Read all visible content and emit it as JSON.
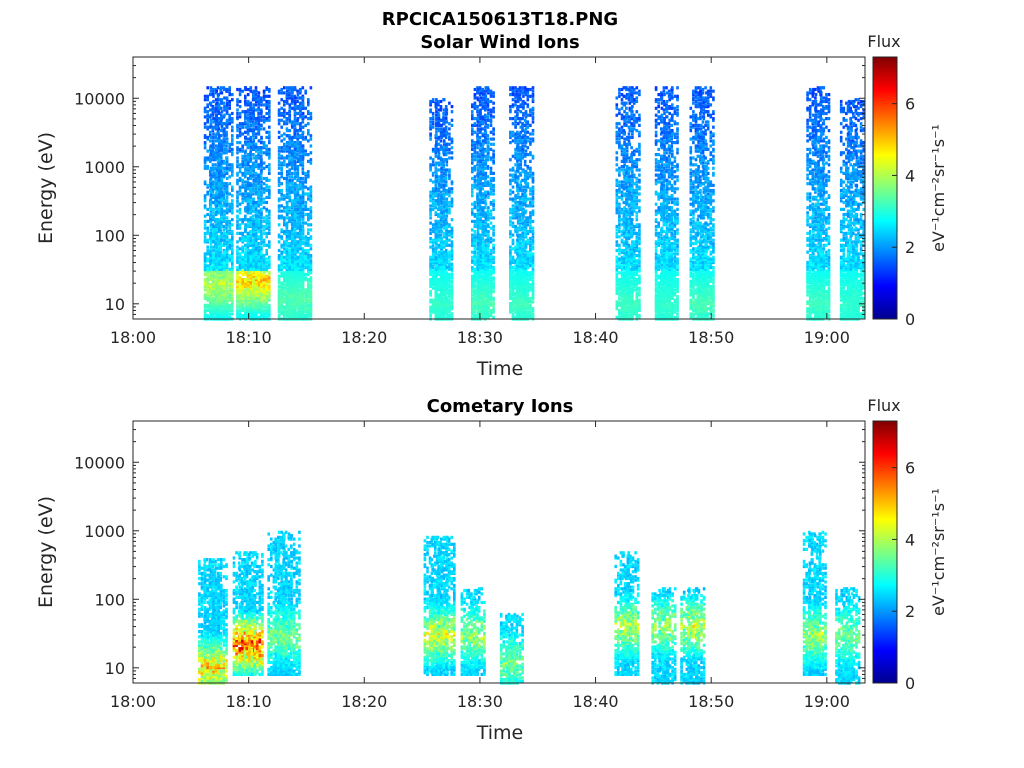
{
  "figure": {
    "title": "RPCICA150613T18.PNG"
  },
  "chart_data": [
    {
      "type": "heatmap",
      "title": "Solar Wind Ions",
      "xlabel": "Time",
      "ylabel": "Energy (eV)",
      "x_ticks": [
        "18:00",
        "18:10",
        "18:20",
        "18:30",
        "18:40",
        "18:50",
        "19:00"
      ],
      "x_tick_minutes": [
        0,
        10,
        20,
        30,
        40,
        50,
        60
      ],
      "xlim_minutes": [
        0,
        63.3
      ],
      "y_scale": "log",
      "y_ticks": [
        "10",
        "100",
        "1000",
        "10000"
      ],
      "y_tick_values": [
        10,
        100,
        1000,
        10000
      ],
      "ylim": [
        6,
        40000
      ],
      "colorbar": {
        "label": "eV⁻¹cm⁻²sr⁻¹s⁻¹",
        "title": "Flux",
        "ticks": [
          "0",
          "2",
          "4",
          "6"
        ],
        "range": [
          0,
          7.3
        ],
        "colormap": "jet"
      },
      "series": [
        {
          "time_minutes": [
            6.8,
            7.3,
            7.8
          ],
          "energy_range_eV": [
            6,
            15000
          ],
          "peak_flux": 4.5,
          "peak_energy_eV": 20
        },
        {
          "time_minutes": [
            9.6,
            10.3,
            11.0
          ],
          "energy_range_eV": [
            6,
            15000
          ],
          "peak_flux": 5.5,
          "peak_energy_eV": 22
        },
        {
          "time_minutes": [
            13.2,
            13.9,
            14.6
          ],
          "energy_range_eV": [
            6,
            15000
          ],
          "peak_flux": 3.5,
          "peak_energy_eV": 12
        },
        {
          "time_minutes": [
            26.3,
            26.8
          ],
          "energy_range_eV": [
            6,
            10000
          ],
          "peak_flux": 3.2,
          "peak_energy_eV": 10
        },
        {
          "time_minutes": [
            29.9,
            30.4
          ],
          "energy_range_eV": [
            6,
            15000
          ],
          "peak_flux": 3.4,
          "peak_energy_eV": 10
        },
        {
          "time_minutes": [
            33.2,
            33.8
          ],
          "energy_range_eV": [
            6,
            15000
          ],
          "peak_flux": 3.3,
          "peak_energy_eV": 10
        },
        {
          "time_minutes": [
            42.4,
            43.0
          ],
          "energy_range_eV": [
            6,
            15000
          ],
          "peak_flux": 3.3,
          "peak_energy_eV": 10
        },
        {
          "time_minutes": [
            45.8,
            46.3
          ],
          "energy_range_eV": [
            6,
            15000
          ],
          "peak_flux": 3.2,
          "peak_energy_eV": 10
        },
        {
          "time_minutes": [
            48.8,
            49.4
          ],
          "energy_range_eV": [
            6,
            15000
          ],
          "peak_flux": 3.4,
          "peak_energy_eV": 10
        },
        {
          "time_minutes": [
            58.9,
            59.4
          ],
          "energy_range_eV": [
            6,
            15000
          ],
          "peak_flux": 3.3,
          "peak_energy_eV": 10
        },
        {
          "time_minutes": [
            61.8,
            62.4
          ],
          "energy_range_eV": [
            6,
            10000
          ],
          "peak_flux": 3.2,
          "peak_energy_eV": 10
        }
      ]
    },
    {
      "type": "heatmap",
      "title": "Cometary Ions",
      "xlabel": "Time",
      "ylabel": "Energy (eV)",
      "x_ticks": [
        "18:00",
        "18:10",
        "18:20",
        "18:30",
        "18:40",
        "18:50",
        "19:00"
      ],
      "x_tick_minutes": [
        0,
        10,
        20,
        30,
        40,
        50,
        60
      ],
      "xlim_minutes": [
        0,
        63.3
      ],
      "y_scale": "log",
      "y_ticks": [
        "10",
        "100",
        "1000",
        "10000"
      ],
      "y_tick_values": [
        10,
        100,
        1000,
        10000
      ],
      "ylim": [
        6,
        40000
      ],
      "colorbar": {
        "label": "eV⁻¹cm⁻²sr⁻¹s⁻¹",
        "title": "Flux",
        "ticks": [
          "0",
          "2",
          "4",
          "6"
        ],
        "range": [
          0,
          7.3
        ],
        "colormap": "jet"
      },
      "series": [
        {
          "time_minutes": [
            6.3,
            6.8,
            7.3
          ],
          "energy_range_eV": [
            6,
            400
          ],
          "peak_flux": 5.5,
          "peak_energy_eV": 10
        },
        {
          "time_minutes": [
            9.3,
            9.8,
            10.4
          ],
          "energy_range_eV": [
            8,
            500
          ],
          "peak_flux": 7.0,
          "peak_energy_eV": 22
        },
        {
          "time_minutes": [
            12.3,
            12.9,
            13.6
          ],
          "energy_range_eV": [
            8,
            1000
          ],
          "peak_flux": 3.8,
          "peak_energy_eV": 30
        },
        {
          "time_minutes": [
            25.8,
            26.4,
            27.0
          ],
          "energy_range_eV": [
            8,
            800
          ],
          "peak_flux": 4.8,
          "peak_energy_eV": 30
        },
        {
          "time_minutes": [
            29.0,
            29.6
          ],
          "energy_range_eV": [
            8,
            150
          ],
          "peak_flux": 4.2,
          "peak_energy_eV": 30
        },
        {
          "time_minutes": [
            32.4,
            32.9
          ],
          "energy_range_eV": [
            6,
            60
          ],
          "peak_flux": 3.8,
          "peak_energy_eV": 12
        },
        {
          "time_minutes": [
            42.3,
            42.9
          ],
          "energy_range_eV": [
            8,
            500
          ],
          "peak_flux": 4.5,
          "peak_energy_eV": 40
        },
        {
          "time_minutes": [
            45.5,
            46.1
          ],
          "energy_range_eV": [
            6,
            150
          ],
          "peak_flux": 4.2,
          "peak_energy_eV": 40
        },
        {
          "time_minutes": [
            48.0,
            48.6
          ],
          "energy_range_eV": [
            6,
            150
          ],
          "peak_flux": 4.6,
          "peak_energy_eV": 40
        },
        {
          "time_minutes": [
            58.6,
            59.1
          ],
          "energy_range_eV": [
            8,
            1000
          ],
          "peak_flux": 4.2,
          "peak_energy_eV": 30
        },
        {
          "time_minutes": [
            61.4,
            62.0
          ],
          "energy_range_eV": [
            6,
            150
          ],
          "peak_flux": 3.8,
          "peak_energy_eV": 30
        }
      ]
    }
  ]
}
